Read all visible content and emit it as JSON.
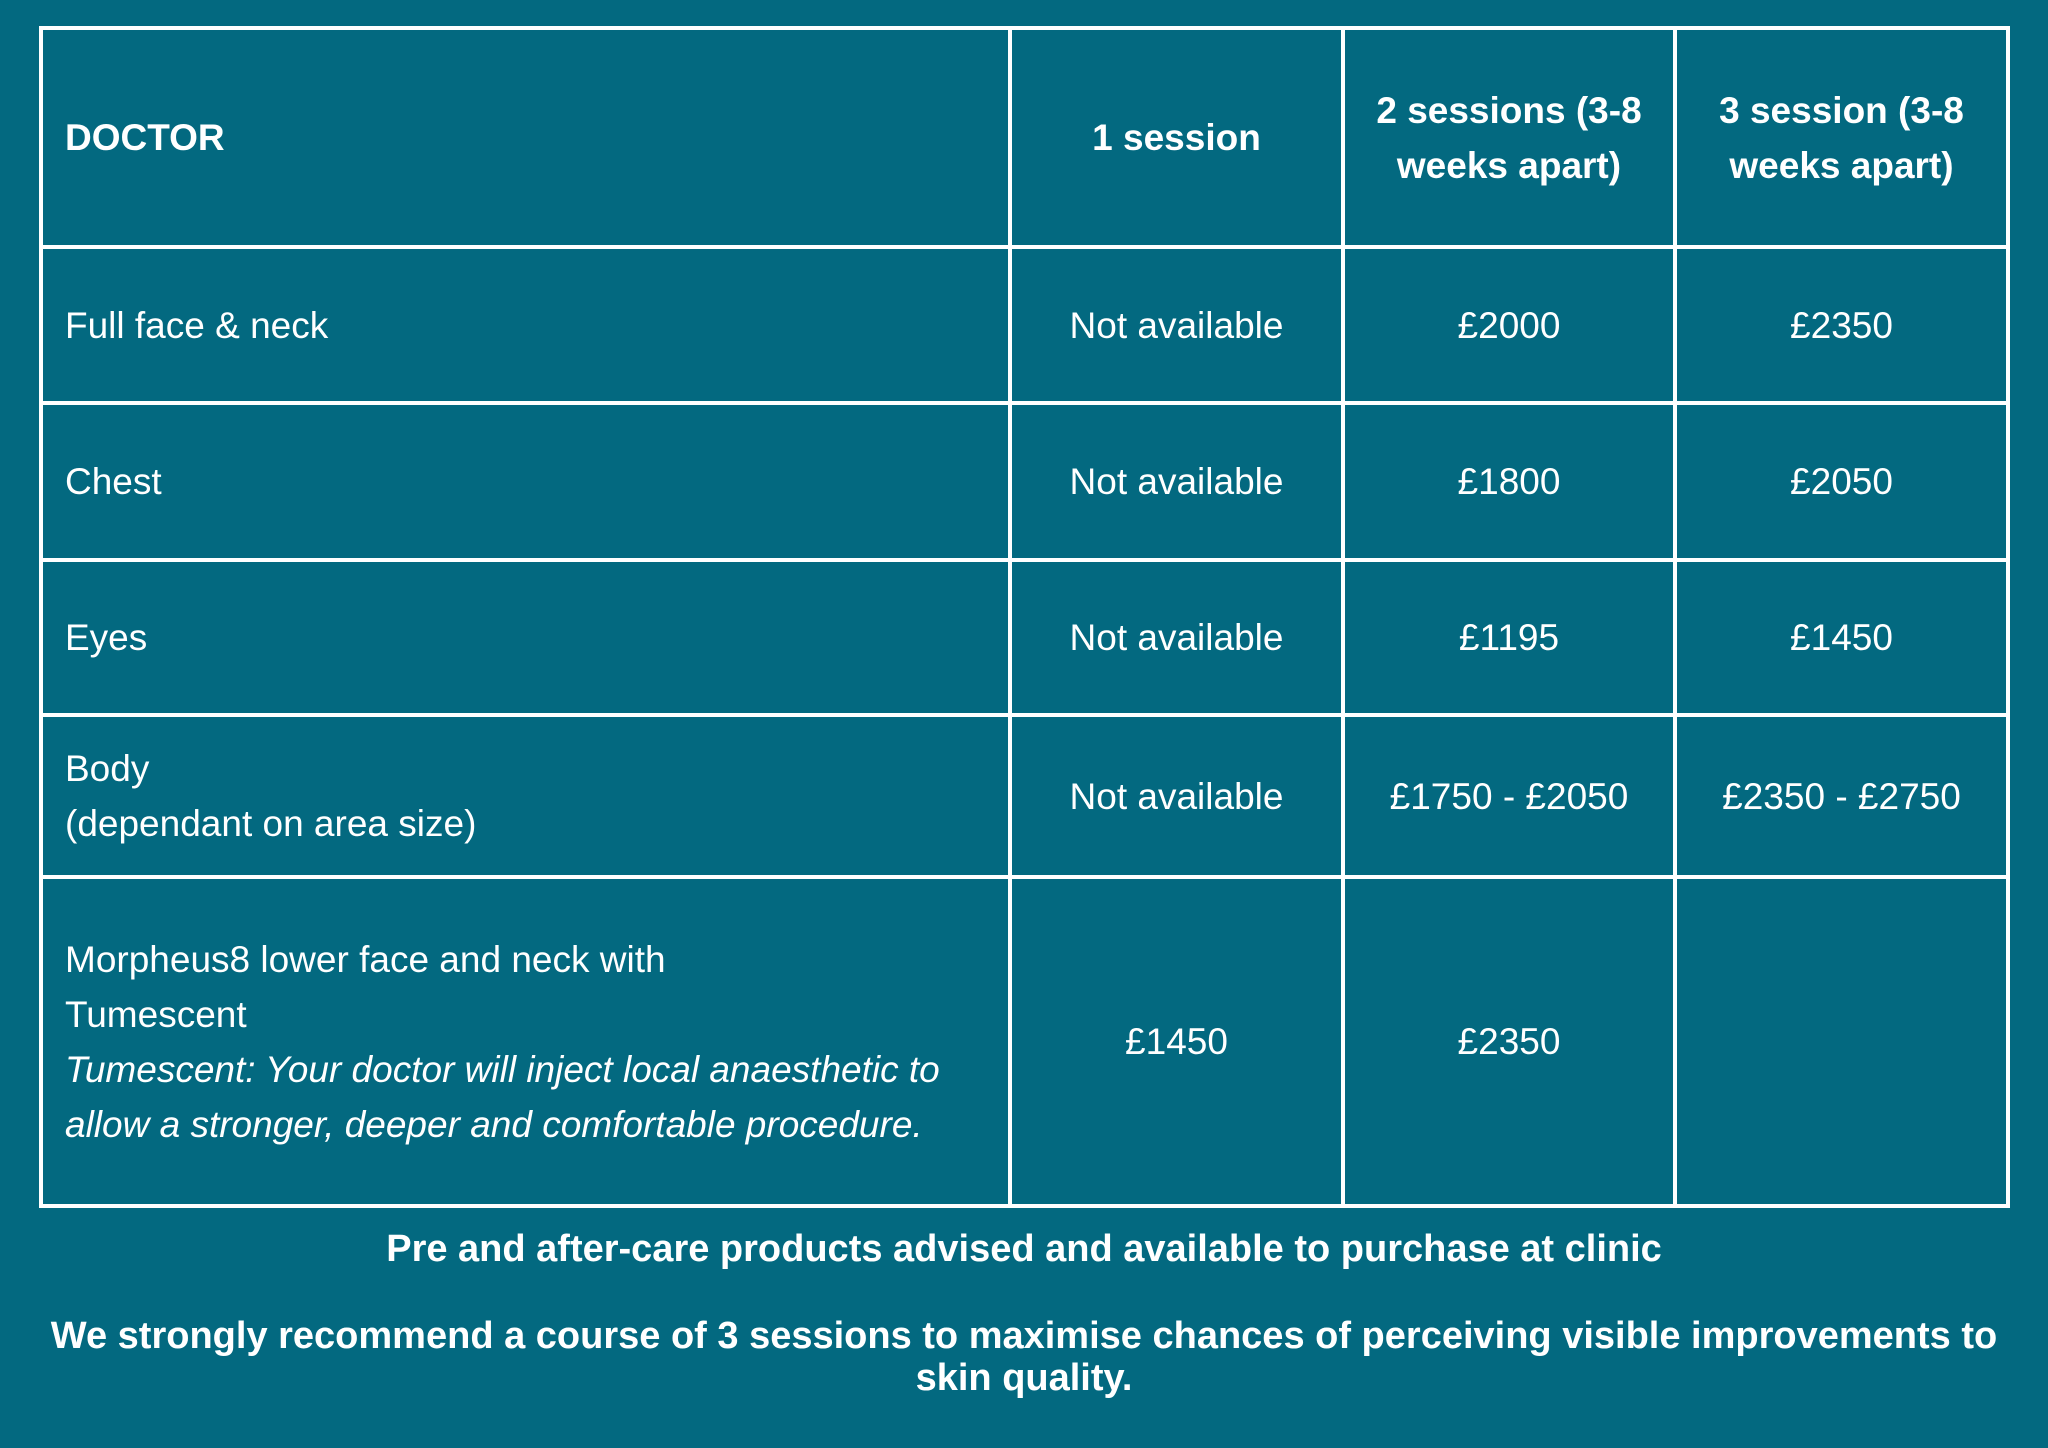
{
  "header": [
    "DOCTOR",
    "1 session",
    "2 sessions (3-8 weeks apart)",
    "3 session (3-8 weeks apart)"
  ],
  "rows": [
    {
      "area": "Full face & neck",
      "s1": "Not available",
      "s2": "£2000",
      "s3": "£2350"
    },
    {
      "area": "Chest",
      "s1": "Not available",
      "s2": "£1800",
      "s3": "£2050"
    },
    {
      "area": "Eyes",
      "s1": "Not available",
      "s2": "£1195",
      "s3": "£1450"
    },
    {
      "area": "Body",
      "area_sub": "(dependant on area size)",
      "s1": "Not available",
      "s2": "£1750 - £2050",
      "s3": "£2350 - £2750"
    },
    {
      "area": "Morpheus8 lower face and neck with Tumescent",
      "note": "Tumescent: Your doctor will inject local anaesthetic to allow a stronger, deeper and comfortable procedure.",
      "s1": "£1450",
      "s2": "£2350",
      "s3": ""
    }
  ],
  "footer": {
    "line1": "Pre and after-care products advised and available to purchase at clinic",
    "line2": "We strongly recommend a course of 3 sessions to maximise chances of perceiving visible improvements to skin quality."
  }
}
